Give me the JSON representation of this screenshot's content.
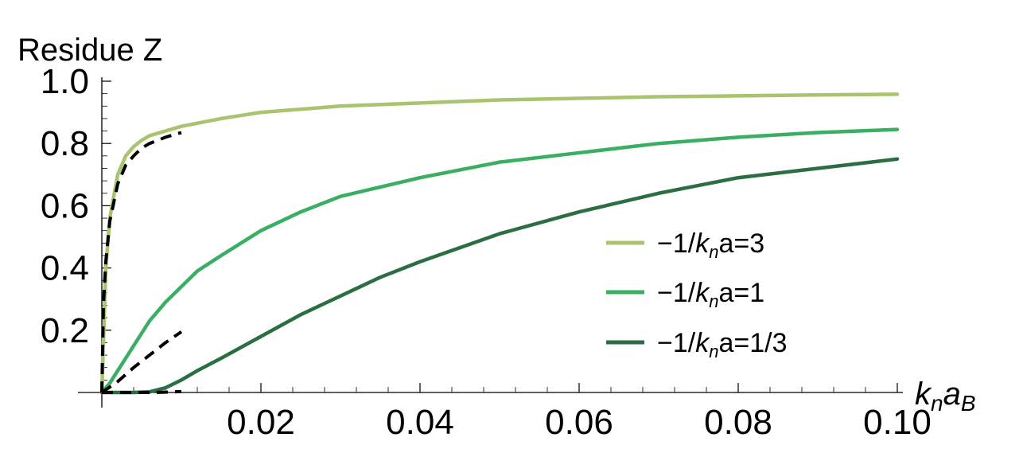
{
  "chart_data": {
    "type": "line",
    "ylabel": "Residue Z",
    "xlabel": {
      "base1": "k",
      "sub1": "n",
      "base2": "a",
      "sub2": "B"
    },
    "xlim": [
      0,
      0.1
    ],
    "ylim": [
      0,
      1.0
    ],
    "xticks": [
      {
        "value": 0.02,
        "label": "0.02"
      },
      {
        "value": 0.04,
        "label": "0.04"
      },
      {
        "value": 0.06,
        "label": "0.06"
      },
      {
        "value": 0.08,
        "label": "0.08"
      },
      {
        "value": 0.1,
        "label": "0.10"
      }
    ],
    "yticks": [
      {
        "value": 0.2,
        "label": "0.2"
      },
      {
        "value": 0.4,
        "label": "0.4"
      },
      {
        "value": 0.6,
        "label": "0.6"
      },
      {
        "value": 0.8,
        "label": "0.8"
      },
      {
        "value": 1.0,
        "label": "1.0"
      }
    ],
    "legend_position": "right",
    "series": [
      {
        "legend": {
          "prefix": "−1/",
          "k": "k",
          "n": "n",
          "suffix": "a=3"
        },
        "color": "#a9c46f",
        "x": [
          0,
          0.0005,
          0.001,
          0.002,
          0.003,
          0.004,
          0.005,
          0.006,
          0.008,
          0.01,
          0.015,
          0.02,
          0.03,
          0.04,
          0.05,
          0.06,
          0.07,
          0.08,
          0.09,
          0.1
        ],
        "y": [
          0,
          0.4,
          0.56,
          0.7,
          0.76,
          0.79,
          0.81,
          0.825,
          0.84,
          0.855,
          0.88,
          0.9,
          0.92,
          0.93,
          0.94,
          0.945,
          0.95,
          0.953,
          0.956,
          0.958
        ]
      },
      {
        "legend": {
          "prefix": "−1/",
          "k": "k",
          "n": "n",
          "suffix": "a=1"
        },
        "color": "#3aaf63",
        "x": [
          0,
          0.001,
          0.002,
          0.004,
          0.006,
          0.008,
          0.01,
          0.012,
          0.015,
          0.02,
          0.025,
          0.03,
          0.04,
          0.05,
          0.06,
          0.07,
          0.08,
          0.09,
          0.1
        ],
        "y": [
          0,
          0.03,
          0.07,
          0.15,
          0.23,
          0.29,
          0.34,
          0.39,
          0.44,
          0.52,
          0.58,
          0.63,
          0.69,
          0.74,
          0.77,
          0.8,
          0.82,
          0.835,
          0.845
        ]
      },
      {
        "legend": {
          "prefix": "−1/",
          "k": "k",
          "n": "n",
          "suffix": "a=1/3"
        },
        "color": "#2a6e41",
        "x": [
          0,
          0.002,
          0.004,
          0.006,
          0.008,
          0.01,
          0.012,
          0.015,
          0.02,
          0.025,
          0.03,
          0.035,
          0.04,
          0.05,
          0.06,
          0.07,
          0.08,
          0.09,
          0.1
        ],
        "y": [
          0,
          0,
          0,
          0.002,
          0.015,
          0.04,
          0.07,
          0.11,
          0.18,
          0.25,
          0.31,
          0.37,
          0.42,
          0.51,
          0.58,
          0.64,
          0.69,
          0.72,
          0.75
        ]
      }
    ],
    "asymptotes": [
      {
        "style": "dashed",
        "color": "#000000",
        "x": [
          0,
          0.0002,
          0.0005,
          0.001,
          0.002,
          0.003,
          0.004,
          0.005,
          0.006,
          0.008,
          0.01
        ],
        "y": [
          0,
          0.28,
          0.42,
          0.55,
          0.67,
          0.73,
          0.76,
          0.785,
          0.8,
          0.82,
          0.835
        ]
      },
      {
        "style": "dashed",
        "color": "#000000",
        "x": [
          0,
          0.002,
          0.004,
          0.006,
          0.008,
          0.01
        ],
        "y": [
          0,
          0.035,
          0.08,
          0.12,
          0.16,
          0.195
        ]
      },
      {
        "style": "dashed",
        "color": "#000000",
        "x": [
          0,
          0.002,
          0.004,
          0.006,
          0.008,
          0.01
        ],
        "y": [
          0,
          0,
          0,
          0,
          0.001,
          0.003
        ]
      }
    ]
  }
}
